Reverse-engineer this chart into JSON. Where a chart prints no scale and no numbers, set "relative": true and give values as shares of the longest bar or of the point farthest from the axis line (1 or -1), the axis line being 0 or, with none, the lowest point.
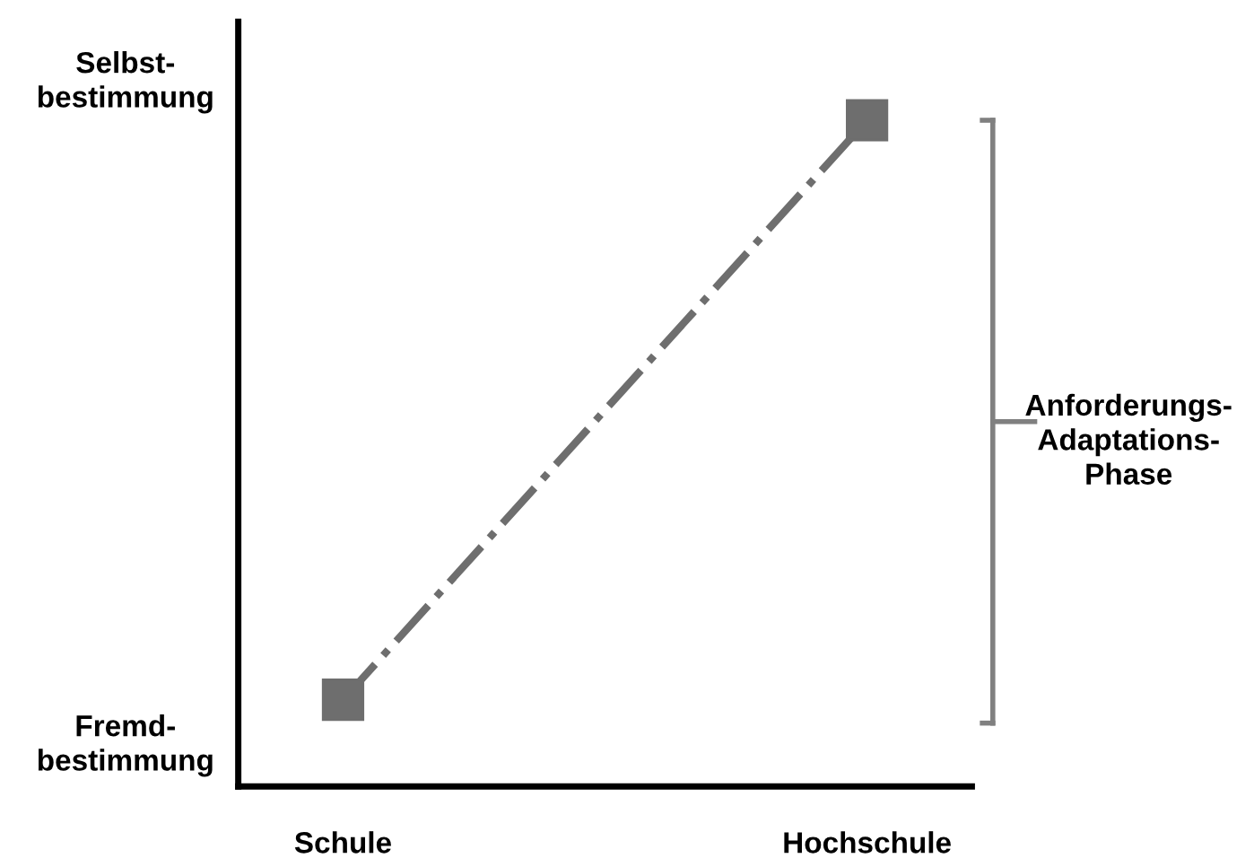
{
  "chart_data": {
    "type": "line",
    "relative": true,
    "categories": [
      "Schule",
      "Hochschule"
    ],
    "series": [
      {
        "color": "#6e6e6e",
        "values": [
          0.13,
          1
        ]
      }
    ],
    "marker": "square",
    "line_style": "dashdot",
    "grid": false,
    "legend": false,
    "annotations": [
      "Selbst-\nbestimmung",
      "Fremd-\nbestimmung",
      "Anforderungs-\nAdaptations-\nPhase"
    ]
  }
}
